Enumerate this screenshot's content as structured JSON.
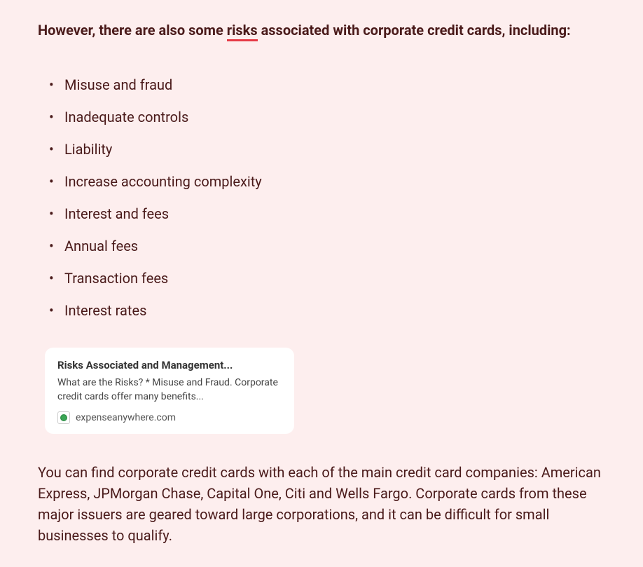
{
  "heading": {
    "prefix": "However, there are also some ",
    "underlined": "risks",
    "suffix": " associated with corporate credit cards, including:"
  },
  "risks": [
    "Misuse and fraud",
    "Inadequate controls",
    "Liability",
    "Increase accounting complexity",
    "Interest and fees",
    "Annual fees",
    "Transaction fees",
    "Interest rates"
  ],
  "card": {
    "title": "Risks Associated and Management...",
    "description": "What are the Risks? * Misuse and Fraud. Corporate credit cards offer many benefits...",
    "source": "expenseanywhere.com"
  },
  "paragraph": "You can find corporate credit cards with each of the main credit card companies: American Express, JPMorgan Chase, Capital One, Citi and Wells Fargo. Corporate cards from these major issuers are geared toward large corporations, and it can be difficult for small businesses to qualify.",
  "colors": {
    "background": "#fdeeee",
    "text": "#4a1a1a",
    "underline": "#e63946",
    "card_bg": "#ffffff"
  }
}
